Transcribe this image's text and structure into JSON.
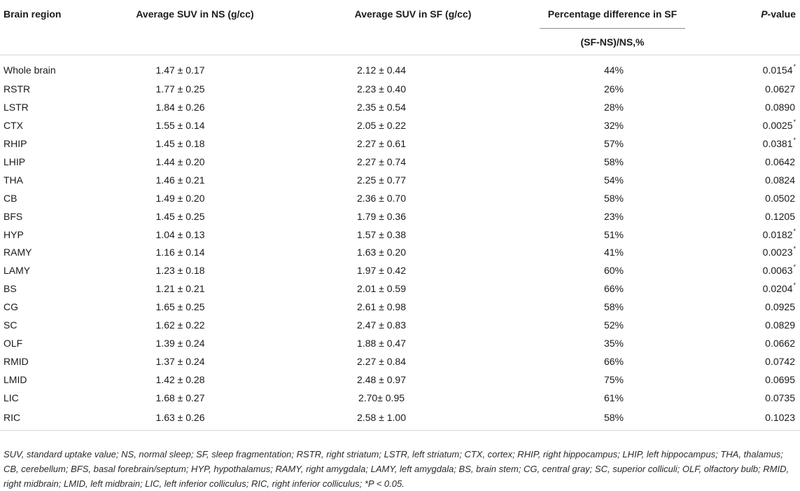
{
  "headers": {
    "region": "Brain region",
    "ns": "Average SUV in NS (g/cc)",
    "sf": "Average SUV in SF (g/cc)",
    "pct_title": "Percentage difference in SF",
    "pct_formula": "(SF-NS)/NS,%",
    "p_italic": "P",
    "p_suffix": "-value"
  },
  "rows": [
    {
      "region": "Whole brain",
      "ns": "1.47 ± 0.17",
      "sf": "2.12 ± 0.44",
      "pct": "44%",
      "p": "0.0154",
      "sig": "*"
    },
    {
      "region": "RSTR",
      "ns": "1.77 ± 0.25",
      "sf": "2.23 ± 0.40",
      "pct": "26%",
      "p": "0.0627",
      "sig": ""
    },
    {
      "region": "LSTR",
      "ns": "1.84 ± 0.26",
      "sf": "2.35 ± 0.54",
      "pct": "28%",
      "p": "0.0890",
      "sig": ""
    },
    {
      "region": "CTX",
      "ns": "1.55 ± 0.14",
      "sf": "2.05 ± 0.22",
      "pct": "32%",
      "p": "0.0025",
      "sig": "*"
    },
    {
      "region": "RHIP",
      "ns": "1.45 ± 0.18",
      "sf": "2.27 ± 0.61",
      "pct": "57%",
      "p": "0.0381",
      "sig": "*"
    },
    {
      "region": "LHIP",
      "ns": "1.44 ± 0.20",
      "sf": "2.27 ± 0.74",
      "pct": "58%",
      "p": "0.0642",
      "sig": ""
    },
    {
      "region": "THA",
      "ns": "1.46 ± 0.21",
      "sf": "2.25 ± 0.77",
      "pct": "54%",
      "p": "0.0824",
      "sig": ""
    },
    {
      "region": "CB",
      "ns": "1.49 ± 0.20",
      "sf": "2.36 ± 0.70",
      "pct": "58%",
      "p": "0.0502",
      "sig": ""
    },
    {
      "region": "BFS",
      "ns": "1.45 ± 0.25",
      "sf": "1.79 ± 0.36",
      "pct": "23%",
      "p": "0.1205",
      "sig": ""
    },
    {
      "region": "HYP",
      "ns": "1.04 ± 0.13",
      "sf": "1.57 ± 0.38",
      "pct": "51%",
      "p": "0.0182",
      "sig": "*"
    },
    {
      "region": "RAMY",
      "ns": "1.16 ± 0.14",
      "sf": "1.63 ± 0.20",
      "pct": "41%",
      "p": "0.0023",
      "sig": "*"
    },
    {
      "region": "LAMY",
      "ns": "1.23 ± 0.18",
      "sf": "1.97 ± 0.42",
      "pct": "60%",
      "p": "0.0063",
      "sig": "*"
    },
    {
      "region": "BS",
      "ns": "1.21 ± 0.21",
      "sf": "2.01 ± 0.59",
      "pct": "66%",
      "p": "0.0204",
      "sig": "*"
    },
    {
      "region": "CG",
      "ns": "1.65 ± 0.25",
      "sf": "2.61 ± 0.98",
      "pct": "58%",
      "p": "0.0925",
      "sig": ""
    },
    {
      "region": "SC",
      "ns": "1.62 ± 0.22",
      "sf": "2.47 ± 0.83",
      "pct": "52%",
      "p": "0.0829",
      "sig": ""
    },
    {
      "region": "OLF",
      "ns": "1.39 ± 0.24",
      "sf": "1.88 ± 0.47",
      "pct": "35%",
      "p": "0.0662",
      "sig": ""
    },
    {
      "region": "RMID",
      "ns": "1.37 ± 0.24",
      "sf": "2.27 ± 0.84",
      "pct": "66%",
      "p": "0.0742",
      "sig": ""
    },
    {
      "region": "LMID",
      "ns": "1.42 ± 0.28",
      "sf": "2.48 ± 0.97",
      "pct": "75%",
      "p": "0.0695",
      "sig": ""
    },
    {
      "region": "LIC",
      "ns": "1.68 ± 0.27",
      "sf": "2.70± 0.95",
      "pct": "61%",
      "p": "0.0735",
      "sig": ""
    },
    {
      "region": "RIC",
      "ns": "1.63 ± 0.26",
      "sf": "2.58 ± 1.00",
      "pct": "58%",
      "p": "0.1023",
      "sig": ""
    }
  ],
  "footnote": {
    "line1": "SUV, standard uptake value; NS, normal sleep; SF, sleep fragmentation; RSTR, right striatum; LSTR, left striatum; CTX, cortex; RHIP, right hippocampus; LHIP, left hippocampus; THA, thalamus; CB, cerebellum; BFS, basal forebrain/septum; HYP, hypothalamus; RAMY, right amygdala; LAMY, left amygdala; BS, brain stem; CG, central gray; SC, superior colliculi; OLF, olfactory bulb; RMID, right midbrain; LMID, left midbrain; LIC, left inferior colliculus; RIC, right inferior colliculus; *P < 0.05."
  }
}
